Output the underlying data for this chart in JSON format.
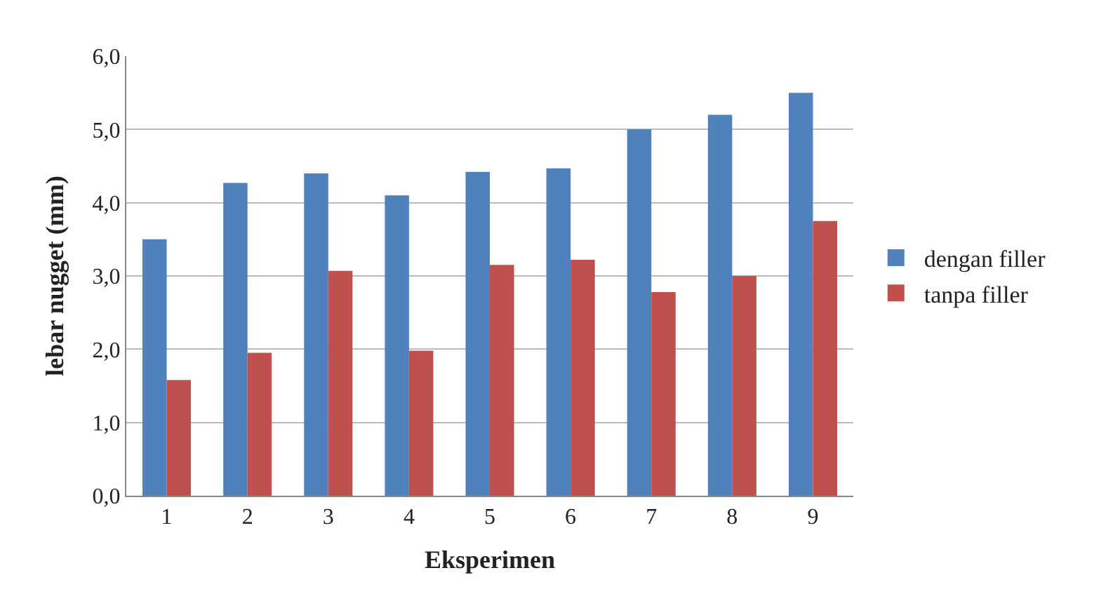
{
  "chart_data": {
    "type": "bar",
    "xlabel": "Eksperimen",
    "ylabel": "lebar nugget (mm)",
    "categories": [
      "1",
      "2",
      "3",
      "4",
      "5",
      "6",
      "7",
      "8",
      "9"
    ],
    "series": [
      {
        "name": "dengan filler",
        "color": "#4f81bd",
        "values": [
          3.5,
          4.27,
          4.4,
          4.1,
          4.42,
          4.47,
          5.0,
          5.2,
          5.5
        ]
      },
      {
        "name": "tanpa filler",
        "color": "#c0504d",
        "values": [
          1.58,
          1.95,
          3.07,
          1.98,
          3.15,
          3.22,
          2.78,
          3.0,
          3.75
        ]
      }
    ],
    "ylim": [
      0,
      6
    ],
    "yticks": [
      {
        "value": 0,
        "label": "0,0"
      },
      {
        "value": 1,
        "label": "1,0"
      },
      {
        "value": 2,
        "label": "2,0"
      },
      {
        "value": 3,
        "label": "3,0"
      },
      {
        "value": 4,
        "label": "4,0"
      },
      {
        "value": 5,
        "label": "5,0"
      },
      {
        "value": 6,
        "label": "6,0"
      }
    ],
    "grid": "y",
    "legend": "right"
  }
}
